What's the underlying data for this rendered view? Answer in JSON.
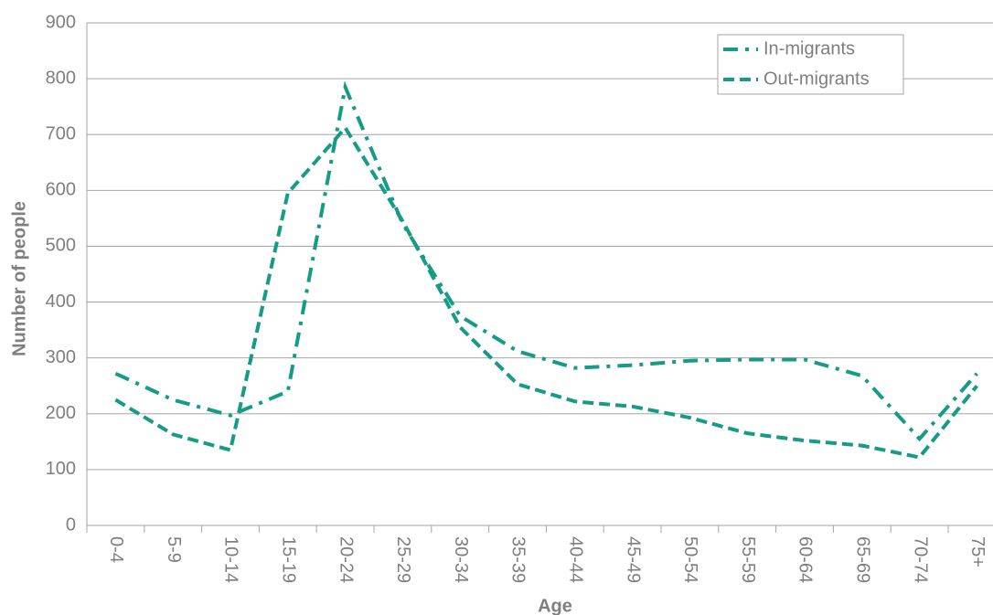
{
  "chart_data": {
    "type": "line",
    "x_label": "Age",
    "y_label": "Number of people",
    "categories": [
      "0-4",
      "5-9",
      "10-14",
      "15-19",
      "20-24",
      "25-29",
      "30-34",
      "35-39",
      "40-44",
      "45-49",
      "50-54",
      "55-59",
      "60-64",
      "65-69",
      "70-74",
      "75+"
    ],
    "series": [
      {
        "name": "In-migrants",
        "color": "#169b87",
        "dash": "dash-dot",
        "values": [
          272,
          225,
          197,
          240,
          785,
          540,
          375,
          312,
          282,
          287,
          295,
          297,
          297,
          268,
          155,
          272
        ]
      },
      {
        "name": "Out-migrants",
        "color": "#169b87",
        "dash": "dash",
        "values": [
          225,
          163,
          135,
          595,
          712,
          545,
          355,
          253,
          222,
          213,
          193,
          165,
          152,
          143,
          122,
          250
        ]
      }
    ],
    "ylim": [
      0,
      900
    ],
    "yticks": [
      0,
      100,
      200,
      300,
      400,
      500,
      600,
      700,
      800,
      900
    ],
    "grid": true,
    "legend": "top-right"
  }
}
